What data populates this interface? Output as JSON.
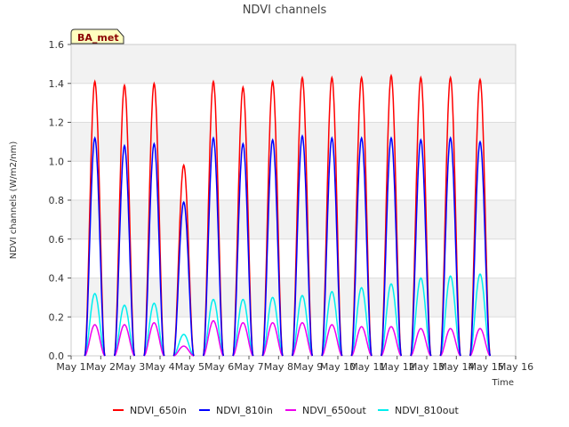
{
  "chart_data": {
    "type": "line",
    "title": "NDVI channels",
    "xlabel": "Time",
    "ylabel": "NDVI channels (W/m2/nm)",
    "badge": "BA_met",
    "ylim": [
      0,
      1.6
    ],
    "xlim": [
      1,
      16
    ],
    "yticks": [
      "0.0",
      "0.2",
      "0.4",
      "0.6",
      "0.8",
      "1.0",
      "1.2",
      "1.4",
      "1.6"
    ],
    "xticks": [
      "May 1",
      "May 2",
      "May 3",
      "May 4",
      "May 5",
      "May 6",
      "May 7",
      "May 8",
      "May 9",
      "May 10",
      "May 11",
      "May 12",
      "May 13",
      "May 14",
      "May 15",
      "May 16"
    ],
    "days": [
      1.8,
      2.8,
      3.8,
      4.8,
      5.8,
      6.8,
      7.8,
      8.8,
      9.8,
      10.8,
      11.8,
      12.8,
      13.8,
      14.8
    ],
    "series": [
      {
        "name": "NDVI_650in",
        "color": "#ff0000",
        "peaks": [
          1.41,
          1.39,
          1.4,
          0.98,
          1.41,
          1.38,
          1.41,
          1.43,
          1.43,
          1.43,
          1.44,
          1.43,
          1.43,
          1.42
        ]
      },
      {
        "name": "NDVI_810in",
        "color": "#0000ff",
        "peaks": [
          1.12,
          1.08,
          1.09,
          0.79,
          1.12,
          1.09,
          1.11,
          1.13,
          1.12,
          1.12,
          1.12,
          1.11,
          1.12,
          1.1
        ]
      },
      {
        "name": "NDVI_650out",
        "color": "#ee00ee",
        "peaks": [
          0.16,
          0.16,
          0.17,
          0.05,
          0.18,
          0.17,
          0.17,
          0.17,
          0.16,
          0.15,
          0.15,
          0.14,
          0.14,
          0.14
        ]
      },
      {
        "name": "NDVI_810out",
        "color": "#00eeee",
        "peaks": [
          0.32,
          0.26,
          0.27,
          0.11,
          0.29,
          0.29,
          0.3,
          0.31,
          0.33,
          0.35,
          0.37,
          0.4,
          0.41,
          0.42
        ]
      }
    ],
    "grid": true,
    "legend_position": "bottom"
  }
}
